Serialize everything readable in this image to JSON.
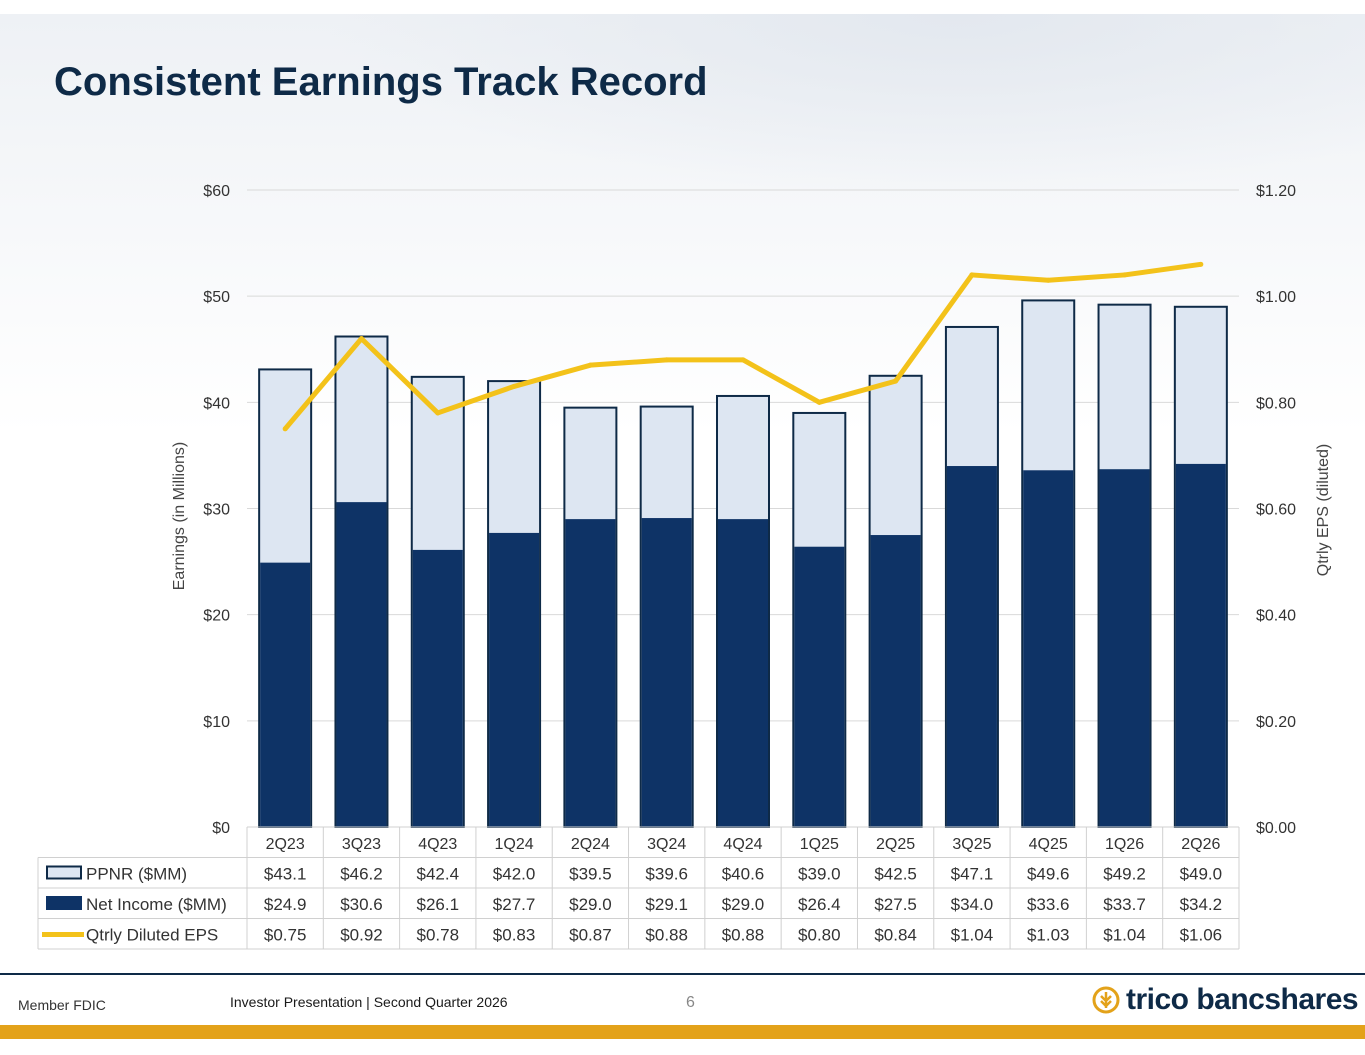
{
  "title": "Consistent Earnings Track Record",
  "footer": {
    "member": "Member FDIC",
    "presentation": "Investor Presentation  |  Second Quarter 2026",
    "page": "6",
    "logo": "trico bancshares"
  },
  "colors": {
    "navy": "#0e3366",
    "light_blue": "#dde6f2",
    "gold": "#f3c21a",
    "grid": "#d9d9d9"
  },
  "chart_data": {
    "type": "bar",
    "stacked": "overlay",
    "categories": [
      "2Q23",
      "3Q23",
      "4Q23",
      "1Q24",
      "2Q24",
      "3Q24",
      "4Q24",
      "1Q25",
      "2Q25",
      "3Q25",
      "4Q25",
      "1Q26",
      "2Q26"
    ],
    "ylabel": "Earnings (in Millions)",
    "y2label": "Qtrly EPS (diluted)",
    "ylim": [
      0,
      60
    ],
    "y2lim": [
      0,
      1.2
    ],
    "yticks": [
      "$0",
      "$10",
      "$20",
      "$30",
      "$40",
      "$50",
      "$60"
    ],
    "y2ticks": [
      "$0.00",
      "$0.20",
      "$0.40",
      "$0.60",
      "$0.80",
      "$1.00",
      "$1.20"
    ],
    "grid": true,
    "series": [
      {
        "name": "PPNR ($MM)",
        "kind": "bar",
        "values": [
          43.1,
          46.2,
          42.4,
          42.0,
          39.5,
          39.6,
          40.6,
          39.0,
          42.5,
          47.1,
          49.6,
          49.2,
          49.0
        ],
        "labels": [
          "$43.1",
          "$46.2",
          "$42.4",
          "$42.0",
          "$39.5",
          "$39.6",
          "$40.6",
          "$39.0",
          "$42.5",
          "$47.1",
          "$49.6",
          "$49.2",
          "$49.0"
        ]
      },
      {
        "name": "Net Income ($MM)",
        "kind": "bar",
        "values": [
          24.9,
          30.6,
          26.1,
          27.7,
          29.0,
          29.1,
          29.0,
          26.4,
          27.5,
          34.0,
          33.6,
          33.7,
          34.2
        ],
        "labels": [
          "$24.9",
          "$30.6",
          "$26.1",
          "$27.7",
          "$29.0",
          "$29.1",
          "$29.0",
          "$26.4",
          "$27.5",
          "$34.0",
          "$33.6",
          "$33.7",
          "$34.2"
        ]
      },
      {
        "name": "Qtrly Diluted EPS",
        "kind": "line",
        "axis": "secondary",
        "values": [
          0.75,
          0.92,
          0.78,
          0.83,
          0.87,
          0.88,
          0.88,
          0.8,
          0.84,
          1.04,
          1.03,
          1.04,
          1.06
        ],
        "labels": [
          "$0.75",
          "$0.92",
          "$0.78",
          "$0.83",
          "$0.87",
          "$0.88",
          "$0.88",
          "$0.80",
          "$0.84",
          "$1.04",
          "$1.03",
          "$1.04",
          "$1.06"
        ]
      }
    ]
  }
}
